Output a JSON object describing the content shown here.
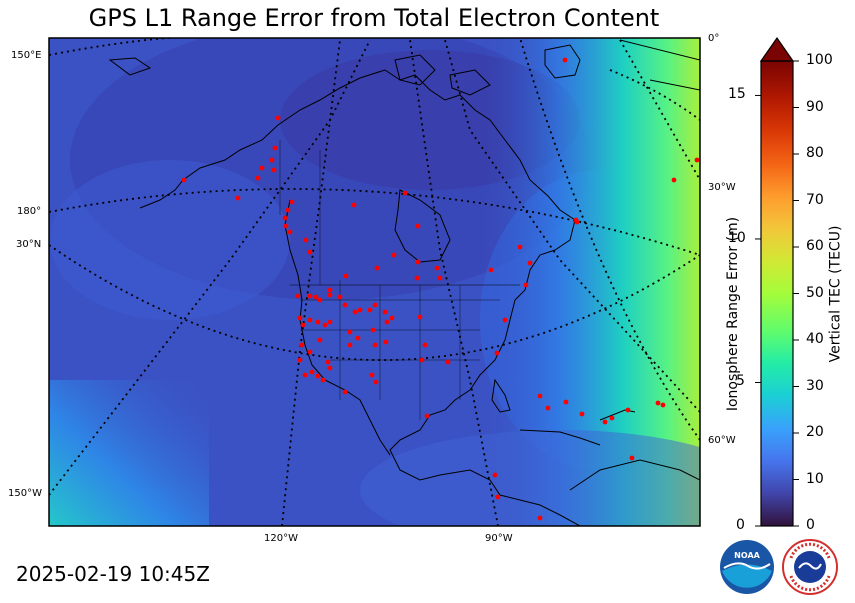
{
  "title": "GPS L1 Range Error from Total Electron Content",
  "timestamp": "2025-02-19 10:45Z",
  "map": {
    "lon_labels_bottom": [
      "120°W",
      "90°W"
    ],
    "left_labels": [
      "150°E",
      "180°",
      "30°N",
      "150°W"
    ],
    "right_labels": [
      "0°",
      "30°W",
      "60°W"
    ]
  },
  "colorbar": {
    "left_axis_label": "Ionosphere Range Error (m)",
    "left_ticks": [
      "0",
      "5",
      "10",
      "15"
    ],
    "right_axis_label": "Vertical TEC (TECU)",
    "right_ticks": [
      "0",
      "10",
      "20",
      "30",
      "40",
      "50",
      "60",
      "70",
      "80",
      "90",
      "100"
    ],
    "extend": "max",
    "colormap": "turbo"
  },
  "logos": {
    "noaa": "NOAA",
    "nws": "NATIONAL WEATHER SERVICE"
  },
  "colors": {
    "background_field": "#3b52c4",
    "station_dots": "#ff0000",
    "coastline": "#000000",
    "graticule": "#000000"
  },
  "chart_data": {
    "type": "heatmap",
    "title": "GPS L1 Range Error from Total Electron Content",
    "ylabel_left": "Ionosphere Range Error (m)",
    "ylabel_right": "Vertical TEC (TECU)",
    "colorbar_range_tecu": [
      0,
      100
    ],
    "colorbar_range_m": [
      0,
      16.2
    ],
    "typical_field_tecu": 17,
    "field_range_over_map_tecu": [
      12,
      52
    ],
    "stations_shown": true
  }
}
